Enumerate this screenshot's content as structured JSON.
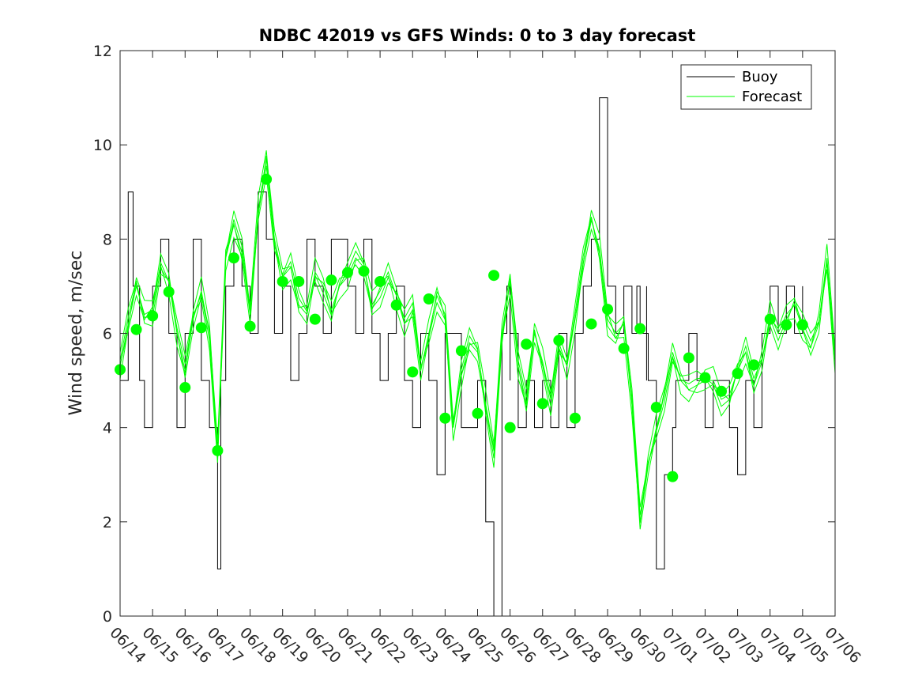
{
  "chart_data": {
    "type": "line",
    "title": "NDBC 42019 vs GFS Winds: 0 to 3 day forecast",
    "xlabel": "",
    "ylabel": "Wind speed, m/sec",
    "ylim": [
      0,
      12
    ],
    "yticks": [
      0,
      2,
      4,
      6,
      8,
      10,
      12
    ],
    "xlim": [
      "06/14",
      "07/06"
    ],
    "xticks": [
      "06/14",
      "06/15",
      "06/16",
      "06/17",
      "06/18",
      "06/19",
      "06/20",
      "06/21",
      "06/22",
      "06/23",
      "06/24",
      "06/25",
      "06/26",
      "06/27",
      "06/28",
      "06/29",
      "06/30",
      "07/01",
      "07/02",
      "07/03",
      "07/04",
      "07/05",
      "07/06"
    ],
    "grid": false,
    "legend": {
      "placement": "top-right",
      "entries": [
        "Buoy",
        "Forecast"
      ]
    },
    "colors": {
      "buoy": "#000000",
      "forecast": "#00ff00",
      "axis": "#262626"
    },
    "series": [
      {
        "name": "Buoy",
        "x_days": [
          0,
          0.25,
          0.4,
          0.6,
          0.75,
          1.0,
          1.25,
          1.5,
          1.75,
          2.0,
          2.25,
          2.5,
          2.75,
          3.0,
          3.1,
          3.25,
          3.5,
          3.75,
          4.0,
          4.25,
          4.5,
          4.75,
          5.0,
          5.25,
          5.5,
          5.75,
          6.0,
          6.25,
          6.5,
          6.75,
          7.0,
          7.25,
          7.5,
          7.75,
          8.0,
          8.25,
          8.5,
          8.75,
          9.0,
          9.25,
          9.5,
          9.75,
          10.0,
          10.25,
          10.5,
          10.75,
          11.0,
          11.25,
          11.5,
          11.75,
          11.9,
          12.0,
          12.25,
          12.5,
          12.75,
          13.0,
          13.25,
          13.5,
          13.75,
          14.0,
          14.25,
          14.5,
          14.75,
          15.0,
          15.25,
          15.5,
          15.75,
          15.9,
          16.0,
          16.25,
          16.5,
          16.75,
          17.0,
          17.1,
          17.25,
          17.5,
          17.75,
          18.0,
          18.25,
          18.5,
          18.75,
          19.0,
          19.25,
          19.5,
          19.75,
          20.0,
          20.25,
          20.5,
          20.75,
          21.0
        ],
        "values": [
          5,
          9,
          7,
          5,
          4,
          7,
          8,
          6,
          4,
          6,
          8,
          5,
          4,
          1,
          5,
          7,
          8,
          7,
          6,
          9,
          8,
          6,
          7,
          5,
          6,
          8,
          7,
          6,
          8,
          8,
          7,
          6,
          8,
          6,
          5,
          6,
          7,
          5,
          4,
          6,
          5,
          3,
          6,
          6,
          4,
          4,
          5,
          2,
          0,
          6,
          7,
          6,
          4,
          5,
          4,
          5,
          4,
          6,
          4,
          6,
          7,
          8,
          11,
          7,
          6,
          7,
          6,
          7,
          6,
          5,
          1,
          3,
          4,
          5,
          5,
          6,
          5,
          4,
          5,
          5,
          4,
          3,
          5,
          4,
          6,
          7,
          6,
          7,
          6,
          7
        ],
        "extra_ranges": [
          {
            "x": 12.0,
            "min": 5,
            "max": 7
          },
          {
            "x": 16.2,
            "min": 5,
            "max": 7
          }
        ]
      },
      {
        "name": "Forecast",
        "x_days": [
          0,
          0.25,
          0.5,
          0.75,
          1.0,
          1.25,
          1.5,
          1.75,
          2.0,
          2.25,
          2.5,
          2.75,
          3.0,
          3.25,
          3.5,
          3.75,
          4.0,
          4.25,
          4.5,
          4.75,
          5.0,
          5.25,
          5.5,
          5.75,
          6.0,
          6.25,
          6.5,
          6.75,
          7.0,
          7.25,
          7.5,
          7.75,
          8.0,
          8.25,
          8.5,
          8.75,
          9.0,
          9.25,
          9.5,
          9.75,
          10.0,
          10.25,
          10.5,
          10.75,
          11.0,
          11.25,
          11.5,
          11.75,
          12.0,
          12.25,
          12.5,
          12.75,
          13.0,
          13.25,
          13.5,
          13.75,
          14.0,
          14.25,
          14.5,
          14.75,
          15.0,
          15.25,
          15.5,
          15.75,
          16.0,
          16.25,
          16.5,
          16.75,
          17.0,
          17.25,
          17.5,
          17.75,
          18.0,
          18.25,
          18.5,
          18.75,
          19.0,
          19.25,
          19.5,
          19.75,
          20.0,
          20.25,
          20.5,
          20.75,
          21.0,
          21.25,
          21.5,
          21.75,
          22.0
        ],
        "values": [
          5.3,
          6.2,
          7.0,
          6.4,
          6.5,
          7.5,
          7.1,
          6.0,
          5.2,
          6.3,
          6.9,
          6.0,
          3.5,
          7.6,
          8.3,
          7.7,
          6.4,
          8.6,
          9.7,
          8.0,
          7.2,
          7.4,
          6.6,
          6.4,
          7.3,
          7.0,
          6.5,
          7.0,
          7.2,
          7.6,
          7.4,
          6.6,
          6.9,
          7.3,
          6.8,
          6.2,
          6.5,
          5.2,
          6.0,
          6.8,
          6.4,
          4.0,
          5.1,
          5.8,
          5.6,
          4.5,
          3.5,
          6.0,
          7.1,
          5.3,
          4.5,
          6.0,
          5.4,
          4.6,
          5.8,
          5.3,
          6.3,
          7.5,
          8.4,
          7.8,
          6.3,
          6.0,
          6.2,
          4.5,
          2.0,
          3.2,
          4.0,
          4.7,
          5.6,
          5.0,
          4.8,
          4.9,
          5.0,
          5.0,
          4.6,
          4.7,
          5.2,
          5.6,
          4.9,
          5.4,
          6.4,
          6.0,
          6.4,
          6.6,
          6.1,
          5.7,
          6.2,
          7.6,
          5.5
        ]
      },
      {
        "name": "",
        "x_days": [
          0,
          0.5,
          1.0,
          1.5,
          2.0,
          2.5,
          3.0,
          3.5,
          4.0,
          4.5,
          5.0,
          5.5,
          6.0,
          6.5,
          7.0,
          7.5,
          8.0,
          8.5,
          9.0,
          9.5,
          10.0,
          10.5,
          11.0,
          11.5,
          12.0,
          12.5,
          13.0,
          13.5,
          14.0,
          14.5,
          15.0,
          15.5,
          16.0,
          16.5,
          17.0,
          17.5,
          18.0,
          18.5,
          19.0,
          19.5,
          20.0,
          20.5,
          21.0
        ],
        "values": [
          5.23,
          6.08,
          6.37,
          6.88,
          4.85,
          6.12,
          3.51,
          7.6,
          6.15,
          9.27,
          7.1,
          7.1,
          6.3,
          7.13,
          7.29,
          7.32,
          7.1,
          6.6,
          5.18,
          6.73,
          4.2,
          5.63,
          4.3,
          7.23,
          4.0,
          5.77,
          4.51,
          5.85,
          4.2,
          6.2,
          6.51,
          5.68,
          6.1,
          4.43,
          2.96,
          5.48,
          5.06,
          4.77,
          5.15,
          5.33,
          6.3,
          6.18,
          6.18
        ],
        "marker": "filled-circle"
      }
    ]
  }
}
